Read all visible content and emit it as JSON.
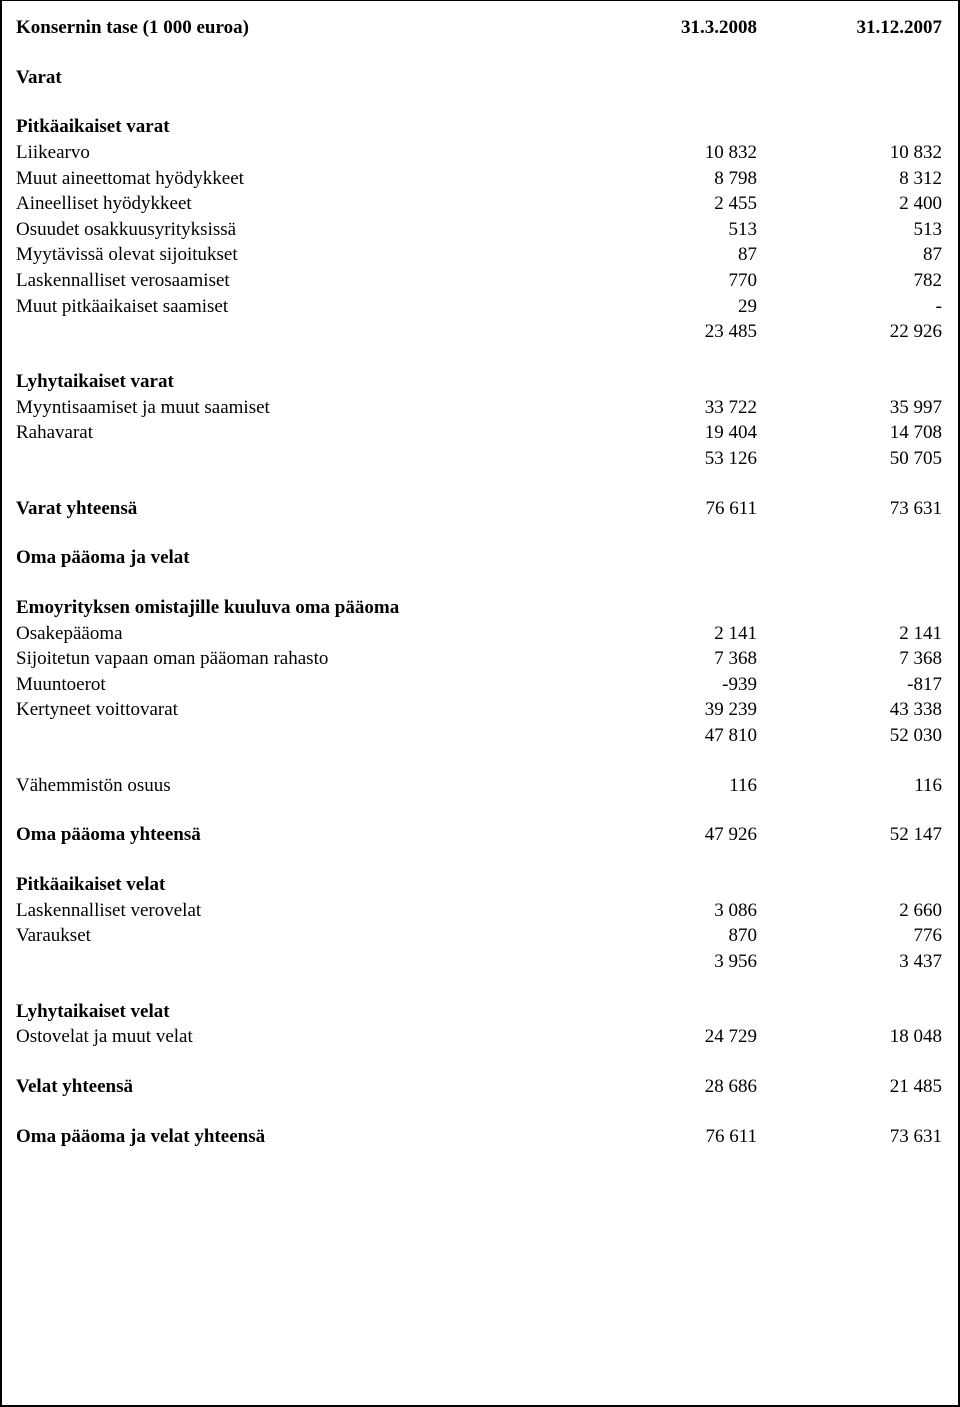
{
  "header": {
    "title": "Konsernin tase (1 000 euroa)",
    "col1": "31.3.2008",
    "col2": "31.12.2007"
  },
  "assets": {
    "heading": "Varat",
    "longTerm": {
      "heading": "Pitkäaikaiset varat",
      "goodwill": {
        "label": "Liikearvo",
        "v1": "10 832",
        "v2": "10 832"
      },
      "intangible": {
        "label": "Muut aineettomat hyödykkeet",
        "v1": "8 798",
        "v2": "8 312"
      },
      "tangible": {
        "label": "Aineelliset hyödykkeet",
        "v1": "2 455",
        "v2": "2 400"
      },
      "associates": {
        "label": "Osuudet osakkuusyrityksissä",
        "v1": "513",
        "v2": "513"
      },
      "afs": {
        "label": "Myytävissä olevat sijoitukset",
        "v1": "87",
        "v2": "87"
      },
      "deferredTaxA": {
        "label": "Laskennalliset verosaamiset",
        "v1": "770",
        "v2": "782"
      },
      "otherLTRecv": {
        "label": "Muut pitkäaikaiset saamiset",
        "v1": "29",
        "v2": "-"
      },
      "subtotal": {
        "v1": "23 485",
        "v2": "22 926"
      }
    },
    "shortTerm": {
      "heading": "Lyhytaikaiset varat",
      "tradeRecv": {
        "label": "Myyntisaamiset ja muut saamiset",
        "v1": "33 722",
        "v2": "35 997"
      },
      "cash": {
        "label": "Rahavarat",
        "v1": "19 404",
        "v2": "14 708"
      },
      "subtotal": {
        "v1": "53 126",
        "v2": "50 705"
      }
    },
    "total": {
      "label": "Varat yhteensä",
      "v1": "76 611",
      "v2": "73 631"
    }
  },
  "equityLiab": {
    "heading": "Oma pääoma ja velat",
    "parentEquity": {
      "heading": "Emoyrityksen omistajille kuuluva oma pääoma",
      "shareCapital": {
        "label": "Osakepääoma",
        "v1": "2 141",
        "v2": "2 141"
      },
      "investedFree": {
        "label": "Sijoitetun vapaan oman pääoman rahasto",
        "v1": "7 368",
        "v2": "7 368"
      },
      "translation": {
        "label": "Muuntoerot",
        "v1": "-939",
        "v2": "-817"
      },
      "retained": {
        "label": "Kertyneet voittovarat",
        "v1": "39 239",
        "v2": "43 338"
      },
      "subtotal": {
        "v1": "47 810",
        "v2": "52 030"
      }
    },
    "minority": {
      "label": "Vähemmistön osuus",
      "v1": "116",
      "v2": "116"
    },
    "equityTotal": {
      "label": "Oma pääoma yhteensä",
      "v1": "47 926",
      "v2": "52 147"
    },
    "longTermLiab": {
      "heading": "Pitkäaikaiset velat",
      "deferredTaxL": {
        "label": "Laskennalliset verovelat",
        "v1": "3 086",
        "v2": "2 660"
      },
      "provisions": {
        "label": "Varaukset",
        "v1": "870",
        "v2": "776"
      },
      "subtotal": {
        "v1": "3 956",
        "v2": "3 437"
      }
    },
    "shortTermLiab": {
      "heading": "Lyhytaikaiset velat",
      "tradePayables": {
        "label": "Ostovelat ja muut velat",
        "v1": "24 729",
        "v2": "18 048"
      }
    },
    "liabTotal": {
      "label": "Velat yhteensä",
      "v1": "28 686",
      "v2": "21 485"
    },
    "grandTotal": {
      "label": "Oma pääoma ja velat yhteensä",
      "v1": "76 611",
      "v2": "73 631"
    }
  }
}
